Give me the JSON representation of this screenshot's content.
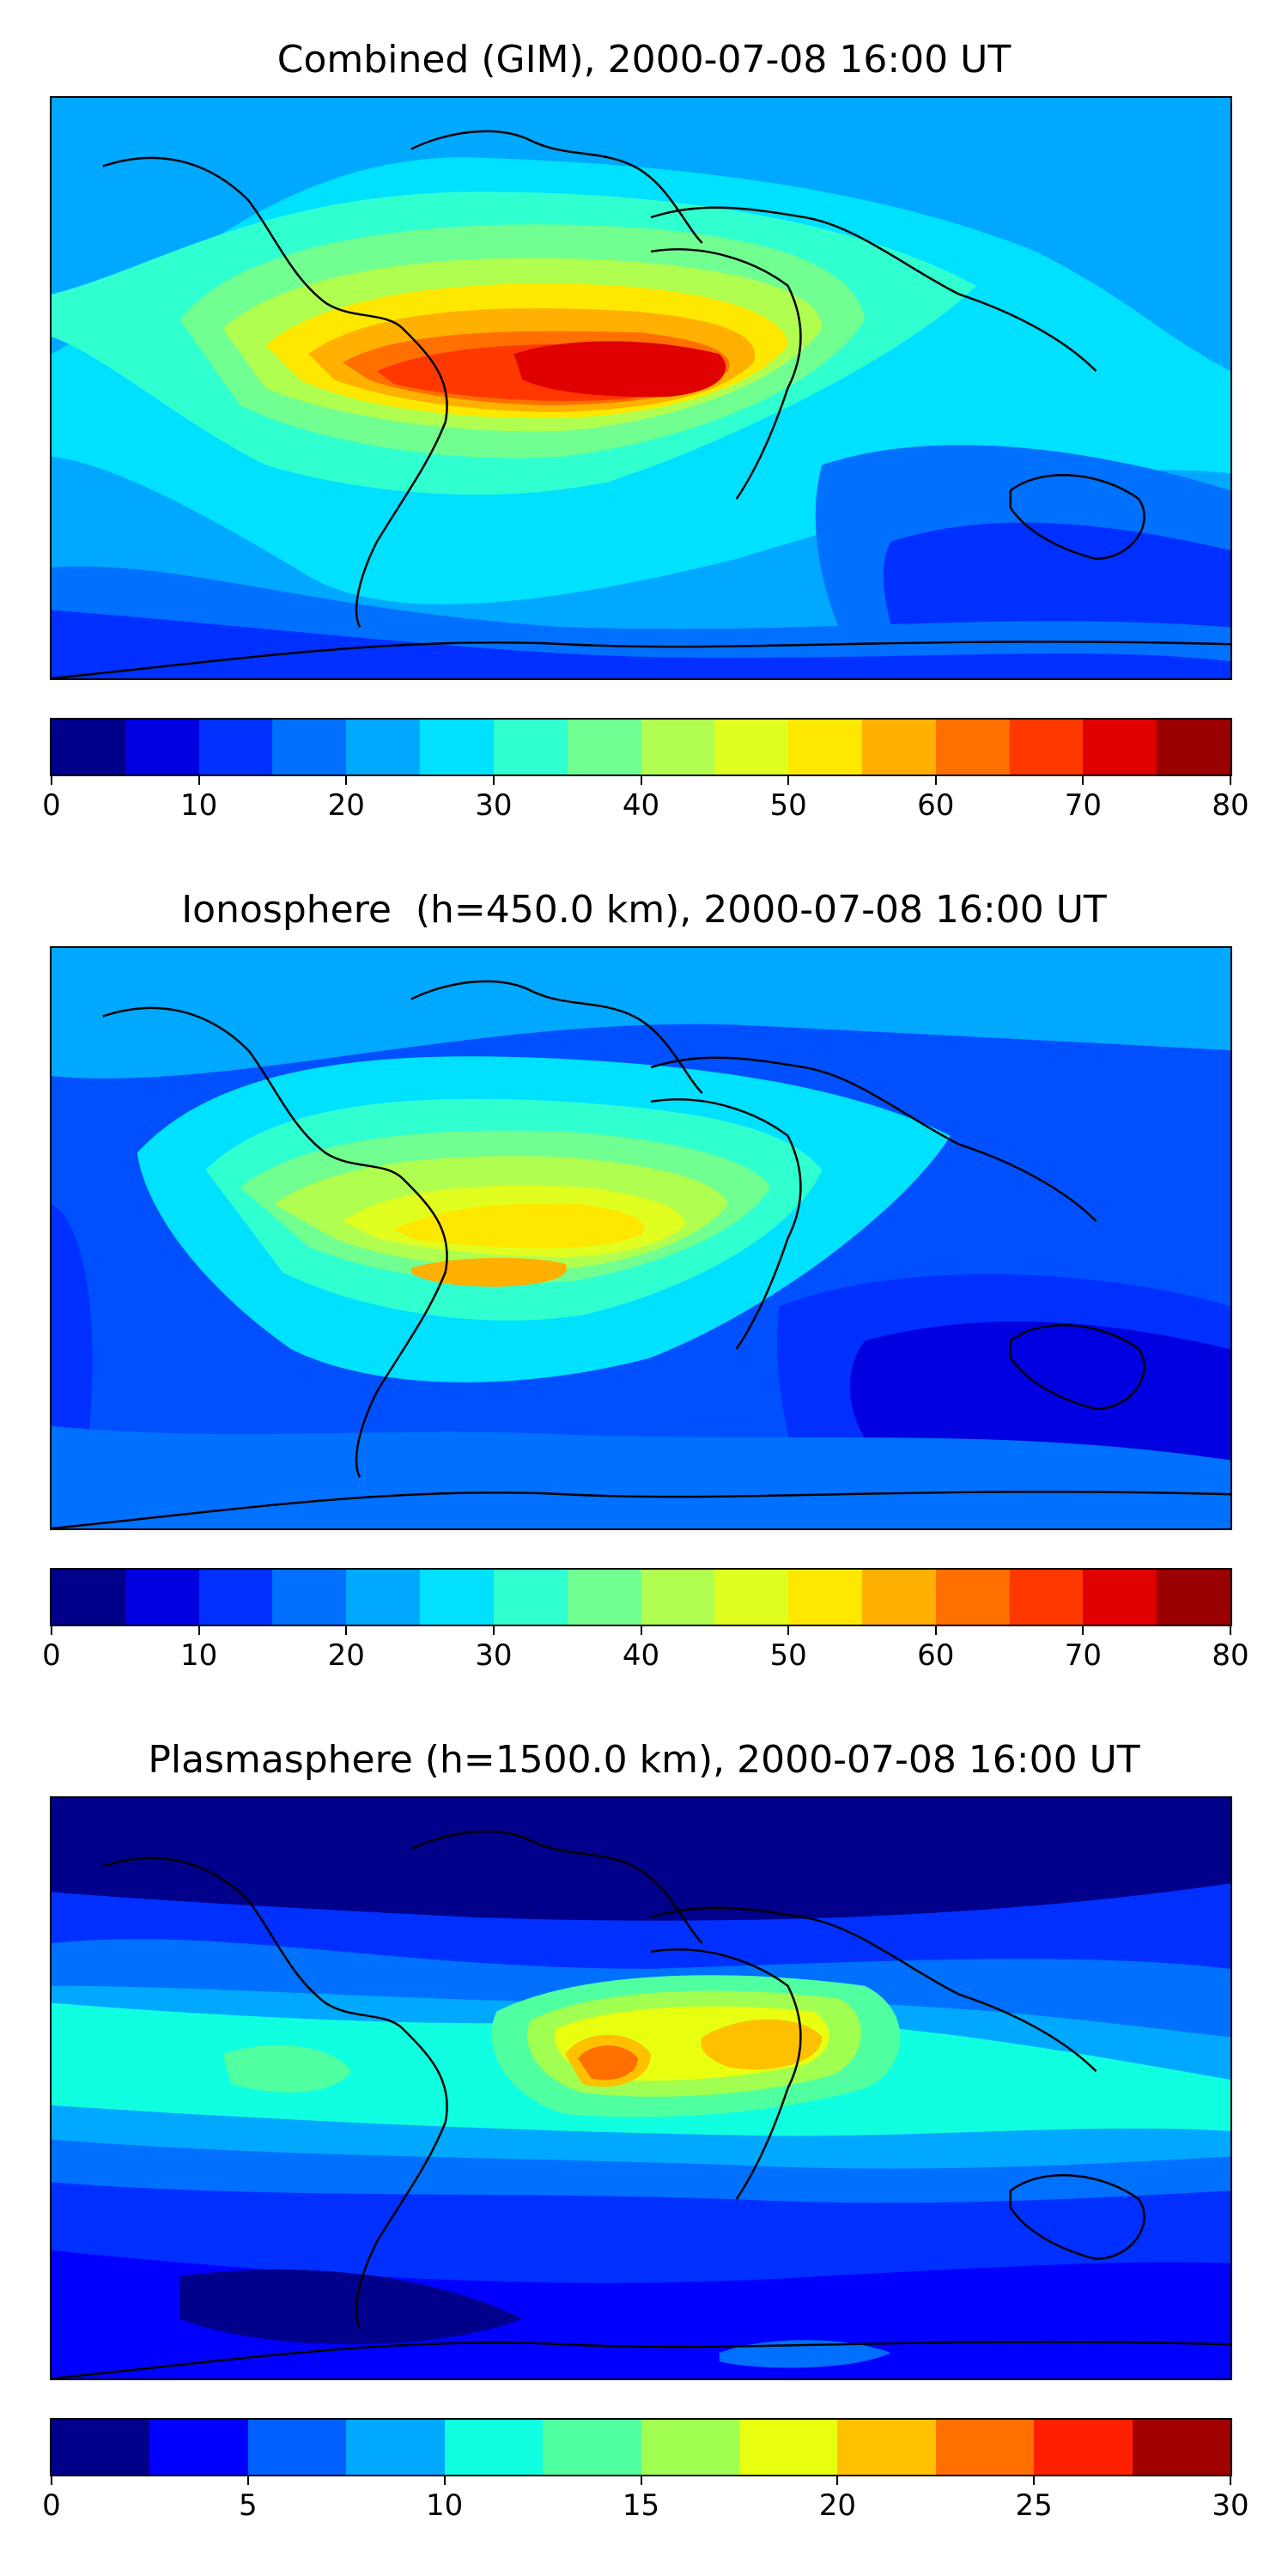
{
  "panels": [
    {
      "title": "Combined (GIM), 2000-07-08 16:00 UT",
      "background": "#00a8ff",
      "colorbar": {
        "ticks": [
          "0",
          "10",
          "20",
          "30",
          "40",
          "50",
          "60",
          "70",
          "80"
        ],
        "range": [
          0,
          80
        ],
        "colors": [
          "#00008b",
          "#0000e0",
          "#0030ff",
          "#0070ff",
          "#00a8ff",
          "#00e0ff",
          "#30ffd0",
          "#70ff90",
          "#b0ff50",
          "#e0ff20",
          "#ffe800",
          "#ffb000",
          "#ff7000",
          "#ff3800",
          "#e00000",
          "#9b0000"
        ]
      }
    },
    {
      "title": "Ionosphere  (h=450.0 km), 2000-07-08 16:00 UT",
      "background": "#0050ff",
      "colorbar": {
        "ticks": [
          "0",
          "10",
          "20",
          "30",
          "40",
          "50",
          "60",
          "70",
          "80"
        ],
        "range": [
          0,
          80
        ],
        "colors": [
          "#00008b",
          "#0000e0",
          "#0030ff",
          "#0070ff",
          "#00a8ff",
          "#00e0ff",
          "#30ffd0",
          "#70ff90",
          "#b0ff50",
          "#e0ff20",
          "#ffe800",
          "#ffb000",
          "#ff7000",
          "#ff3800",
          "#e00000",
          "#9b0000"
        ]
      }
    },
    {
      "title": "Plasmasphere (h=1500.0 km), 2000-07-08 16:00 UT",
      "background": "#0030ff",
      "colorbar": {
        "ticks": [
          "0",
          "5",
          "10",
          "15",
          "20",
          "25",
          "30"
        ],
        "range": [
          0,
          30
        ],
        "colors": [
          "#00008b",
          "#0000ff",
          "#0060ff",
          "#00a8ff",
          "#10ffe0",
          "#50ffa0",
          "#a0ff50",
          "#e8ff10",
          "#ffc000",
          "#ff7000",
          "#ff2000",
          "#a00000"
        ]
      }
    }
  ]
}
